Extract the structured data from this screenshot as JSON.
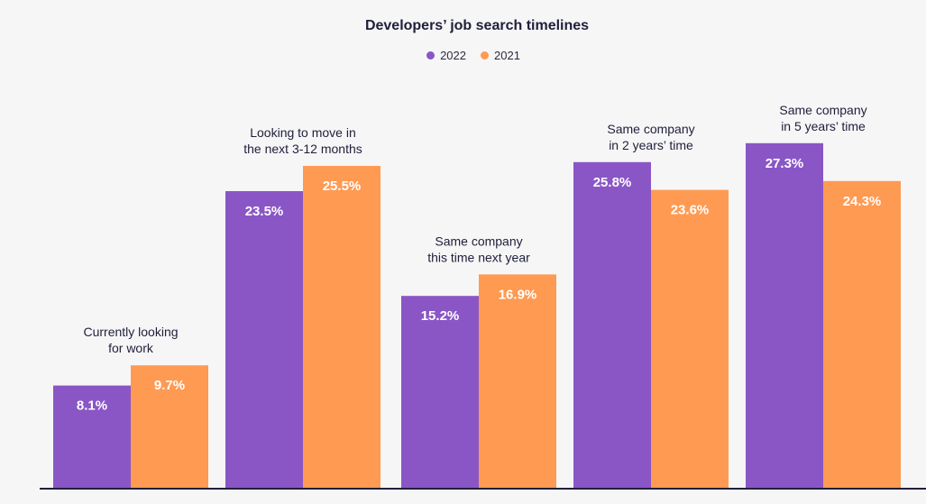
{
  "chart_data": {
    "type": "bar",
    "title": "Developers’ job search timelines",
    "categories": [
      [
        "Currently looking",
        "for work"
      ],
      [
        "Looking to move in",
        "the next 3-12 months"
      ],
      [
        "Same company",
        "this time next year"
      ],
      [
        "Same company",
        "in 2 years’ time"
      ],
      [
        "Same company",
        "in 5 years’ time"
      ]
    ],
    "series": [
      {
        "name": "2022",
        "color": "#8a56c6",
        "values": [
          8.1,
          23.5,
          15.2,
          25.8,
          27.3
        ],
        "labels": [
          "8.1%",
          "23.5%",
          "15.2%",
          "25.8%",
          "27.3%"
        ]
      },
      {
        "name": "2021",
        "color": "#ff9a52",
        "values": [
          9.7,
          25.5,
          16.9,
          23.6,
          24.3
        ],
        "labels": [
          "9.7%",
          "25.5%",
          "16.9%",
          "23.6%",
          "24.3%"
        ]
      }
    ],
    "ylim": [
      0,
      29
    ],
    "grid": false,
    "legend_position": "top-center",
    "baseline_color": "#1f1f3a"
  }
}
